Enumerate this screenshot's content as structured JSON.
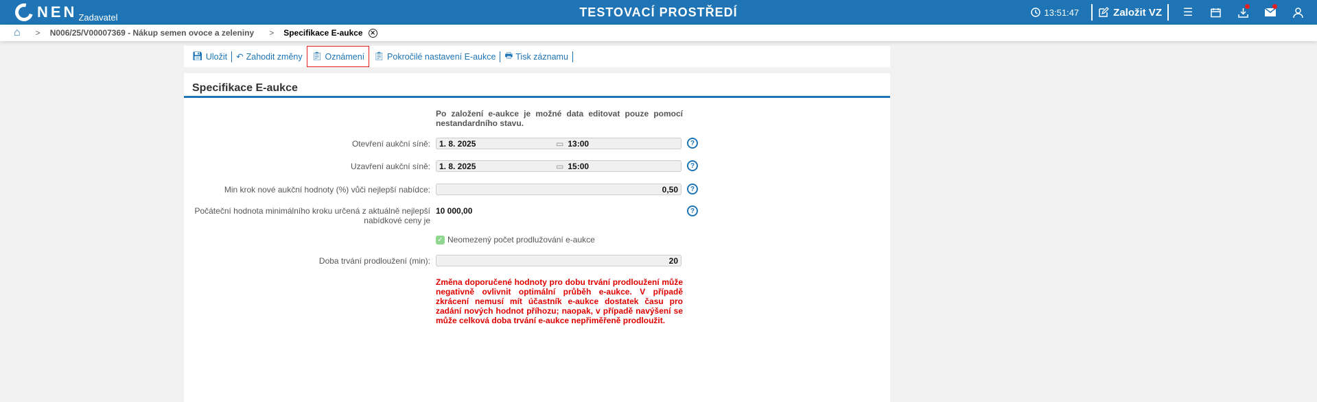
{
  "header": {
    "logo": "NEN",
    "role": "Zadavatel",
    "title": "TESTOVACÍ PROSTŘEDÍ",
    "time": "13:51:47",
    "create_label": "Založit VZ",
    "accent": "#1e74b4"
  },
  "breadcrumb": {
    "item1": "N006/25/V00007369 - Nákup semen ovoce a zeleniny",
    "current": "Specifikace E-aukce"
  },
  "toolbar": {
    "save": "Uložit",
    "discard": "Zahodit změny",
    "notice": "Oznámení",
    "advanced": "Pokročilé nastavení E-aukce",
    "print": "Tisk záznamu"
  },
  "form": {
    "title": "Specifikace E-aukce",
    "info": "Po založení e-aukce je možné data editovat pouze pomocí nestandardního stavu.",
    "open_label": "Otevření aukční síně:",
    "open_date": "1. 8. 2025",
    "open_time": "13:00",
    "close_label": "Uzavření aukční síně:",
    "close_date": "1. 8. 2025",
    "close_time": "15:00",
    "minstep_label": "Min krok nové aukční hodnoty (%) vůči nejlepší nabídce:",
    "minstep_value": "0,50",
    "initial_label": "Počáteční hodnota minimálního kroku určená z aktuálně nejlepší nabídkové ceny je",
    "initial_value": "10 000,00",
    "unlimited_label": "Neomezený počet prodlužování e-aukce",
    "unlimited_checked": true,
    "duration_label": "Doba trvání prodloužení (min):",
    "duration_value": "20",
    "warning": "Změna doporučené hodnoty pro dobu trvání prodloužení může negativně ovlivnit optimální průběh e-aukce. V případě zkrácení nemusí mít účastník e-aukce dostatek času pro zadání nových hodnot příhozu; naopak, v případě navýšení se může celková doba trvání e-aukce nepřiměřeně prodloužit.",
    "warning_color": "#e00000"
  }
}
